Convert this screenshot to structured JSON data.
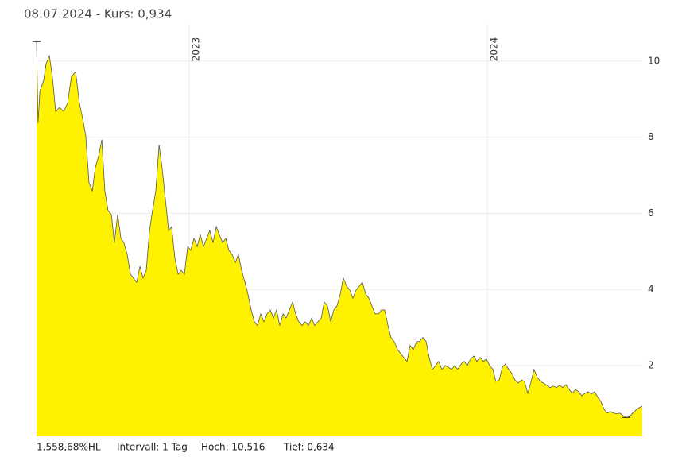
{
  "header": {
    "title": "08.07.2024  -  Kurs: 0,934"
  },
  "chart_data": {
    "type": "area",
    "color": "#fff200",
    "line_color": "#555555",
    "grid": true,
    "xlim": [
      2022.488,
      2024.52
    ],
    "xticks": [
      2023,
      2024
    ],
    "ylim": [
      0.14,
      10.98
    ],
    "yticks": [
      2,
      4,
      6,
      8,
      10
    ],
    "x": [
      2022.488,
      2022.493,
      2022.499,
      2022.512,
      2022.52,
      2022.531,
      2022.541,
      2022.552,
      2022.565,
      2022.579,
      2022.592,
      2022.605,
      2022.619,
      2022.632,
      2022.643,
      2022.653,
      2022.664,
      2022.675,
      2022.685,
      2022.696,
      2022.707,
      2022.717,
      2022.728,
      2022.739,
      2022.749,
      2022.76,
      2022.771,
      2022.781,
      2022.792,
      2022.803,
      2022.813,
      2022.824,
      2022.835,
      2022.845,
      2022.856,
      2022.867,
      2022.877,
      2022.888,
      2022.899,
      2022.909,
      2022.92,
      2022.931,
      2022.941,
      2022.952,
      2022.963,
      2022.973,
      2022.984,
      2022.995,
      2023.005,
      2023.016,
      2023.027,
      2023.037,
      2023.048,
      2023.059,
      2023.069,
      2023.08,
      2023.091,
      2023.101,
      2023.112,
      2023.123,
      2023.133,
      2023.144,
      2023.155,
      2023.165,
      2023.176,
      2023.187,
      2023.197,
      2023.208,
      2023.219,
      2023.229,
      2023.24,
      2023.251,
      2023.261,
      2023.272,
      2023.283,
      2023.293,
      2023.304,
      2023.315,
      2023.325,
      2023.336,
      2023.347,
      2023.357,
      2023.368,
      2023.379,
      2023.389,
      2023.4,
      2023.411,
      2023.421,
      2023.432,
      2023.443,
      2023.453,
      2023.464,
      2023.475,
      2023.485,
      2023.496,
      2023.507,
      2023.517,
      2023.528,
      2023.539,
      2023.549,
      2023.56,
      2023.571,
      2023.581,
      2023.592,
      2023.603,
      2023.613,
      2023.624,
      2023.635,
      2023.645,
      2023.656,
      2023.667,
      2023.677,
      2023.688,
      2023.699,
      2023.709,
      2023.72,
      2023.731,
      2023.741,
      2023.752,
      2023.763,
      2023.773,
      2023.784,
      2023.795,
      2023.805,
      2023.816,
      2023.827,
      2023.837,
      2023.848,
      2023.859,
      2023.869,
      2023.88,
      2023.891,
      2023.901,
      2023.912,
      2023.923,
      2023.933,
      2023.944,
      2023.955,
      2023.965,
      2023.976,
      2023.987,
      2023.997,
      2024.008,
      2024.019,
      2024.029,
      2024.04,
      2024.051,
      2024.061,
      2024.072,
      2024.083,
      2024.093,
      2024.104,
      2024.115,
      2024.125,
      2024.136,
      2024.147,
      2024.157,
      2024.168,
      2024.179,
      2024.189,
      2024.2,
      2024.211,
      2024.221,
      2024.232,
      2024.243,
      2024.253,
      2024.264,
      2024.275,
      2024.285,
      2024.296,
      2024.307,
      2024.317,
      2024.328,
      2024.339,
      2024.349,
      2024.36,
      2024.371,
      2024.381,
      2024.392,
      2024.403,
      2024.413,
      2024.424,
      2024.435,
      2024.445,
      2024.456,
      2024.467,
      2024.477,
      2024.488,
      2024.499,
      2024.509,
      2024.52
    ],
    "values": [
      10.516,
      8.37,
      9.2,
      9.5,
      9.93,
      10.14,
      9.6,
      8.68,
      8.78,
      8.68,
      8.89,
      9.6,
      9.72,
      8.89,
      8.47,
      8.05,
      6.8,
      6.59,
      7.2,
      7.5,
      7.94,
      6.59,
      6.07,
      5.97,
      5.23,
      5.97,
      5.34,
      5.23,
      4.92,
      4.4,
      4.3,
      4.19,
      4.61,
      4.3,
      4.5,
      5.55,
      6.07,
      6.59,
      7.8,
      7.2,
      6.38,
      5.55,
      5.65,
      4.82,
      4.4,
      4.5,
      4.4,
      5.13,
      5.03,
      5.34,
      5.13,
      5.44,
      5.13,
      5.34,
      5.55,
      5.23,
      5.65,
      5.44,
      5.23,
      5.34,
      5.03,
      4.92,
      4.71,
      4.92,
      4.5,
      4.19,
      3.88,
      3.46,
      3.15,
      3.05,
      3.36,
      3.15,
      3.36,
      3.46,
      3.25,
      3.46,
      3.05,
      3.36,
      3.25,
      3.46,
      3.67,
      3.36,
      3.15,
      3.05,
      3.15,
      3.05,
      3.25,
      3.05,
      3.15,
      3.25,
      3.67,
      3.57,
      3.15,
      3.46,
      3.57,
      3.88,
      4.3,
      4.09,
      3.98,
      3.77,
      3.98,
      4.09,
      4.19,
      3.88,
      3.77,
      3.57,
      3.36,
      3.36,
      3.46,
      3.46,
      3.05,
      2.74,
      2.63,
      2.42,
      2.32,
      2.21,
      2.11,
      2.53,
      2.42,
      2.63,
      2.63,
      2.74,
      2.63,
      2.21,
      1.9,
      2.0,
      2.11,
      1.9,
      2.0,
      1.96,
      1.9,
      2.0,
      1.9,
      2.04,
      2.11,
      2.0,
      2.17,
      2.25,
      2.11,
      2.21,
      2.11,
      2.17,
      2.0,
      1.9,
      1.58,
      1.62,
      1.96,
      2.04,
      1.9,
      1.79,
      1.62,
      1.54,
      1.62,
      1.58,
      1.27,
      1.58,
      1.9,
      1.69,
      1.58,
      1.54,
      1.48,
      1.42,
      1.46,
      1.42,
      1.48,
      1.42,
      1.5,
      1.37,
      1.27,
      1.37,
      1.31,
      1.21,
      1.27,
      1.31,
      1.25,
      1.31,
      1.17,
      1.06,
      0.85,
      0.75,
      0.79,
      0.75,
      0.73,
      0.75,
      0.68,
      0.634,
      0.66,
      0.75,
      0.83,
      0.89,
      0.934
    ]
  },
  "footer": {
    "change": "1.558,68%HL",
    "interval": "Intervall: 1 Tag",
    "high": "Hoch: 10,516",
    "low": "Tief: 0,634"
  }
}
